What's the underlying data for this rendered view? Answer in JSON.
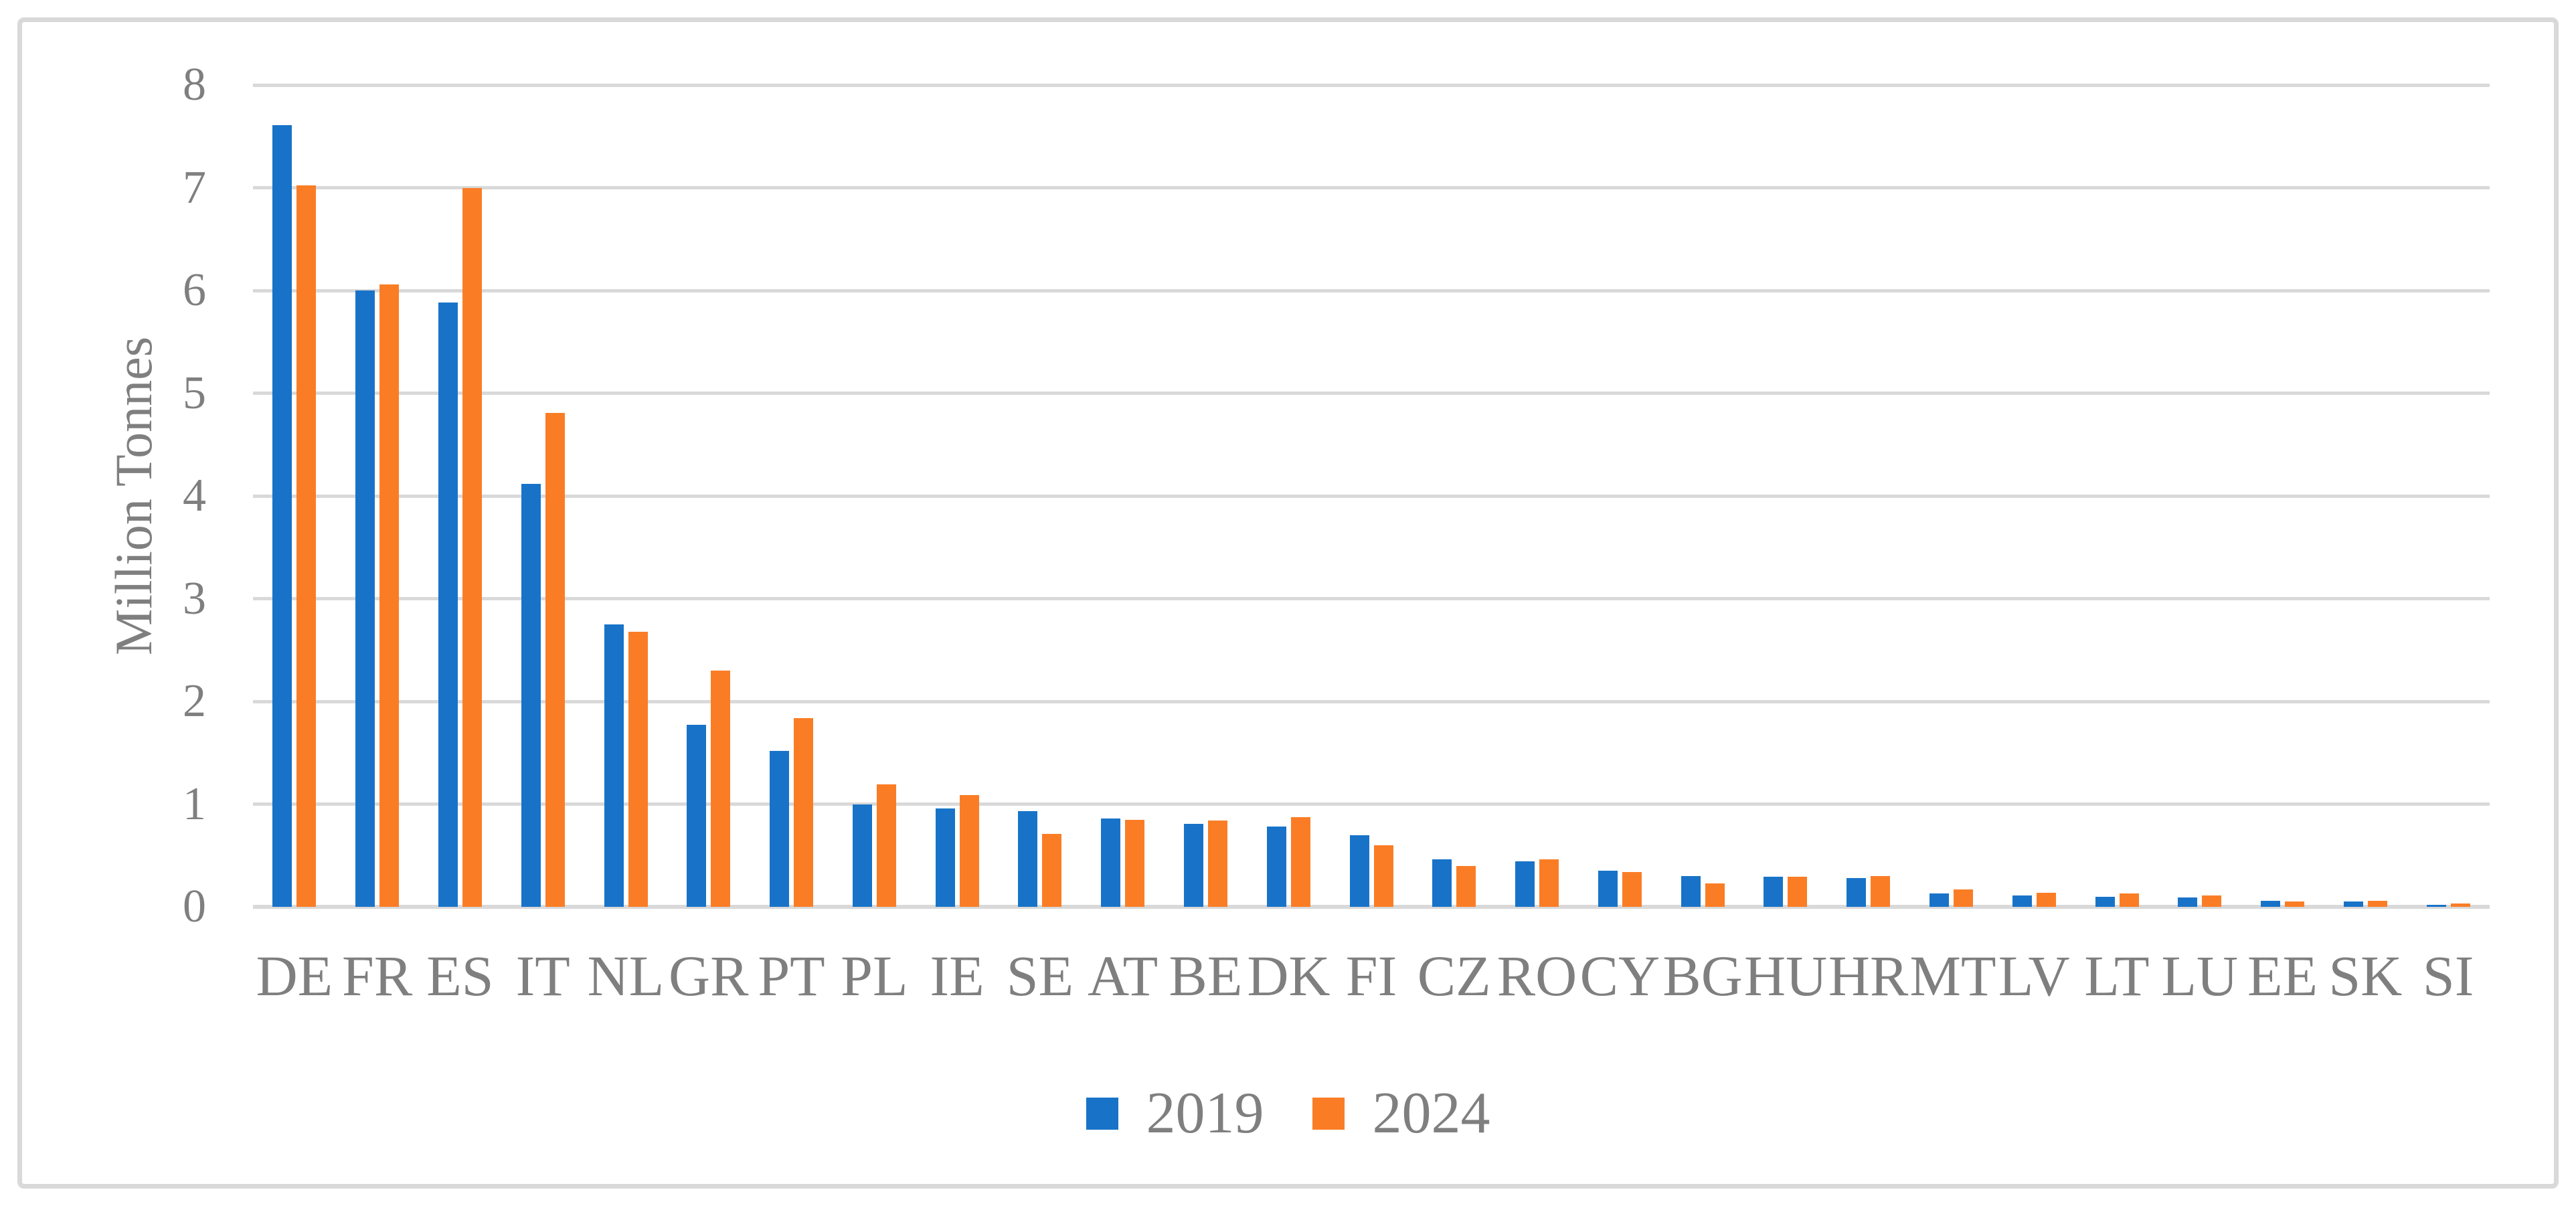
{
  "figure": {
    "background_color": "#FFFFFF",
    "border_color": "#D9D9D9"
  },
  "chart_data": {
    "type": "bar",
    "title": "",
    "xlabel": "",
    "ylabel": "Million Tonnes",
    "ylim": [
      0,
      8
    ],
    "yticks": [
      0,
      1,
      2,
      3,
      4,
      5,
      6,
      7,
      8
    ],
    "grid": "horizontal",
    "gridline_color": "#D9D9D9",
    "axis_text_color": "#7F7F7F",
    "legend_position": "bottom-center",
    "categories": [
      "DE",
      "FR",
      "ES",
      "IT",
      "NL",
      "GR",
      "PT",
      "PL",
      "IE",
      "SE",
      "AT",
      "BE",
      "DK",
      "FI",
      "CZ",
      "RO",
      "CY",
      "BG",
      "HU",
      "HR",
      "MT",
      "LV",
      "LT",
      "LU",
      "EE",
      "SK",
      "SI"
    ],
    "series": [
      {
        "name": "2019",
        "color": "#1873C8",
        "values": [
          7.61,
          6.0,
          5.88,
          4.12,
          2.75,
          1.77,
          1.52,
          1.0,
          0.96,
          0.93,
          0.86,
          0.81,
          0.78,
          0.7,
          0.46,
          0.44,
          0.35,
          0.3,
          0.29,
          0.28,
          0.13,
          0.11,
          0.1,
          0.09,
          0.06,
          0.05,
          0.02
        ]
      },
      {
        "name": "2024",
        "color": "#FA7D26",
        "values": [
          7.02,
          6.06,
          7.0,
          4.81,
          2.68,
          2.3,
          1.84,
          1.19,
          1.09,
          0.71,
          0.85,
          0.84,
          0.87,
          0.6,
          0.4,
          0.46,
          0.34,
          0.23,
          0.29,
          0.3,
          0.17,
          0.14,
          0.13,
          0.11,
          0.05,
          0.06,
          0.03
        ]
      }
    ]
  }
}
